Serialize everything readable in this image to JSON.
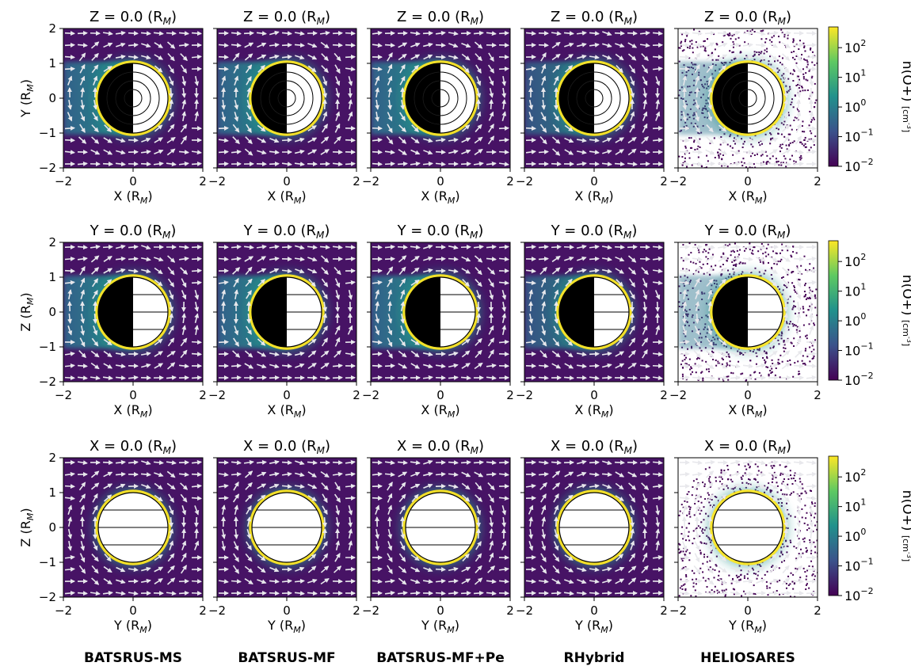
{
  "chart_data": {
    "type": "heatmap",
    "description_colors": {
      "viridis": [
        "#440154",
        "#3b528b",
        "#21918c",
        "#5ec962",
        "#fde725"
      ],
      "background": "#471365",
      "arrow": "#e8e8ec"
    },
    "models": [
      "BATSRUS-MS",
      "BATSRUS-MF",
      "BATSRUS-MF+Pe",
      "RHybrid",
      "HELIOSARES"
    ],
    "rows": [
      {
        "plane": "Z",
        "title": "Z = 0.0 (R",
        "title_sub": "M",
        "title_end": ")",
        "xlabel": "X (R",
        "xlabel_sub": "M",
        "ylabel": "Y (R",
        "ylabel_sub": "M",
        "label_end": ")"
      },
      {
        "plane": "Y",
        "title": "Y = 0.0 (R",
        "title_sub": "M",
        "title_end": ")",
        "xlabel": "X (R",
        "xlabel_sub": "M",
        "ylabel": "Z (R",
        "ylabel_sub": "M",
        "label_end": ")"
      },
      {
        "plane": "X",
        "title": "X = 0.0 (R",
        "title_sub": "M",
        "title_end": ")",
        "xlabel": "Y (R",
        "xlabel_sub": "M",
        "ylabel": "Z (R",
        "ylabel_sub": "M",
        "label_end": ")"
      }
    ],
    "xlim": [
      -2,
      2
    ],
    "ylim": [
      -2,
      2
    ],
    "x_tick_labels": [
      "−2",
      "0",
      "2"
    ],
    "y_tick_labels": [
      "2",
      "1",
      "0",
      "−1",
      "−2"
    ],
    "y_tick_values": [
      2,
      1,
      0,
      -1,
      -2
    ],
    "colorbar": {
      "label": "n(O+)",
      "unit": "[cm",
      "unit_sup": "-3",
      "unit_end": "]",
      "scale": "log",
      "range": [
        0.01,
        500
      ],
      "ticks": [
        {
          "value": 100,
          "base": "10",
          "exp": "2"
        },
        {
          "value": 10,
          "base": "10",
          "exp": "1"
        },
        {
          "value": 1,
          "base": "10",
          "exp": "0"
        },
        {
          "value": 0.1,
          "base": "10",
          "exp": "−1"
        },
        {
          "value": 0.01,
          "base": "10",
          "exp": "−2"
        }
      ]
    }
  }
}
